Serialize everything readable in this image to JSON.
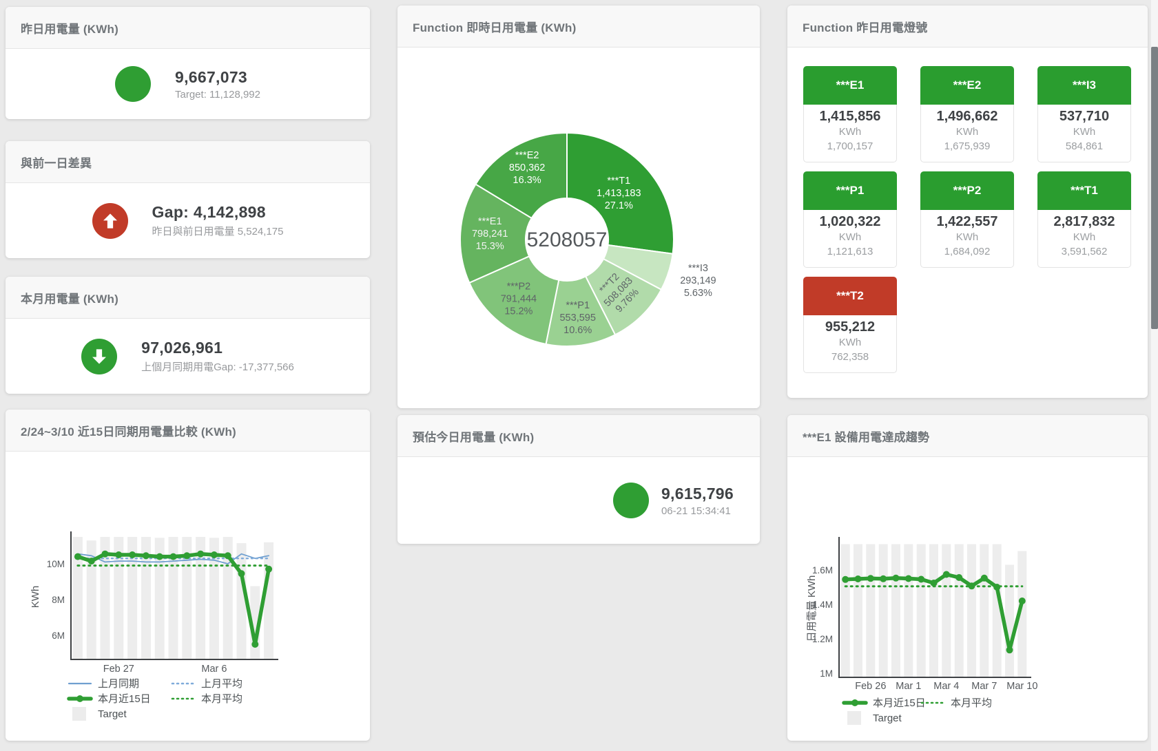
{
  "colors": {
    "green": "#2f9e33",
    "tile_green": "#2a9d2f",
    "red": "#c13b28",
    "bar_gray": "#ededed"
  },
  "cards": {
    "yesterday": {
      "title": "昨日用電量 (KWh)",
      "value": "9,667,073",
      "subtitle": "Target: 11,128,992"
    },
    "gap_prev_day": {
      "title": "與前一日差異",
      "value": "Gap: 4,142,898",
      "subtitle": "昨日與前日用電量 5,524,175"
    },
    "month": {
      "title": "本月用電量 (KWh)",
      "value": "97,026,961",
      "subtitle": "上個月同期用電Gap: -17,377,566"
    },
    "today_estimate": {
      "title": "預估今日用電量 (KWh)",
      "value": "9,615,796",
      "subtitle": "06-21 15:34:41"
    }
  },
  "donut_card": {
    "title": "Function 即時日用電量 (KWh)",
    "center_total": "5208057",
    "slices": [
      {
        "name": "***T1",
        "value": "1,413,183",
        "pct": "27.1%",
        "p": 27.1,
        "color": "#2f9e33",
        "text": "#ffffff",
        "lr": 100
      },
      {
        "name": "***I3",
        "value": "293,149",
        "pct": "5.63%",
        "p": 5.63,
        "color": "#c7e6c1",
        "text": "#5f6468",
        "outside": true
      },
      {
        "name": "***T2",
        "value": "508,083",
        "pct": "9.76%",
        "p": 9.76,
        "color": "#b1dbaa",
        "text": "#5f6468",
        "rotate": -46,
        "lr": 108
      },
      {
        "name": "***P1",
        "value": "553,595",
        "pct": "10.6%",
        "p": 10.6,
        "color": "#9ad192",
        "text": "#5f6468",
        "lr": 116
      },
      {
        "name": "***P2",
        "value": "791,444",
        "pct": "15.2%",
        "p": 15.2,
        "color": "#81c47a",
        "text": "#5f6468",
        "lr": 112
      },
      {
        "name": "***E1",
        "value": "798,241",
        "pct": "15.3%",
        "p": 15.3,
        "color": "#65b45f",
        "text": "#f2f2f2",
        "lr": 112
      },
      {
        "name": "***E2",
        "value": "850,362",
        "pct": "16.3%",
        "p": 16.3,
        "color": "#47a746",
        "text": "#ffffff",
        "lr": 118
      }
    ]
  },
  "lights_card": {
    "title": "Function 昨日用電燈號",
    "unit": "KWh",
    "tiles": [
      {
        "name": "***E1",
        "value": "1,415,856",
        "target": "1,700,157",
        "status": "green"
      },
      {
        "name": "***E2",
        "value": "1,496,662",
        "target": "1,675,939",
        "status": "green"
      },
      {
        "name": "***I3",
        "value": "537,710",
        "target": "584,861",
        "status": "green"
      },
      {
        "name": "***P1",
        "value": "1,020,322",
        "target": "1,121,613",
        "status": "green"
      },
      {
        "name": "***P2",
        "value": "1,422,557",
        "target": "1,684,092",
        "status": "green"
      },
      {
        "name": "***T1",
        "value": "2,817,832",
        "target": "3,591,562",
        "status": "green"
      },
      {
        "name": "***T2",
        "value": "955,212",
        "target": "762,358",
        "status": "red"
      }
    ]
  },
  "comparison_chart": {
    "type": "line",
    "title": "2/24~3/10 近15日同期用電量比較 (KWh)",
    "ylabel": "KWh",
    "unit": "M KWh",
    "ylim": [
      4.654,
      11.654
    ],
    "yticks": [
      {
        "v": 6,
        "t": "6M"
      },
      {
        "v": 8,
        "t": "8M"
      },
      {
        "v": 10,
        "t": "10M"
      }
    ],
    "xticks": [
      {
        "i": 3,
        "t": "Feb 27"
      },
      {
        "i": 10,
        "t": "Mar 6"
      }
    ],
    "bar_color": "#ededed",
    "target": [
      11.5,
      11.3,
      11.5,
      11.5,
      11.5,
      11.5,
      11.45,
      11.5,
      11.5,
      11.5,
      11.45,
      11.5,
      11.15,
      8.75,
      11.2
    ],
    "series": [
      {
        "name": "上月同期",
        "color": "#6f9fd0",
        "w": 1.8,
        "values": [
          10.55,
          10.45,
          10.1,
          10.15,
          10.15,
          10.1,
          10.1,
          10.15,
          10.2,
          10.25,
          10.2,
          10.0,
          10.55,
          10.3,
          10.45
        ]
      },
      {
        "name": "上月平均",
        "color": "#7fabda",
        "w": 2.4,
        "dash": "2,5",
        "values": [
          10.3,
          10.3,
          10.3,
          10.3,
          10.3,
          10.3,
          10.3,
          10.3,
          10.3,
          10.3,
          10.3,
          10.3,
          10.3,
          10.3,
          10.3
        ]
      },
      {
        "name": "本月近15日",
        "color": "#2f9e33",
        "w": 5.5,
        "dots": true,
        "values": [
          10.4,
          10.15,
          10.55,
          10.5,
          10.5,
          10.45,
          10.4,
          10.4,
          10.45,
          10.55,
          10.5,
          10.45,
          9.45,
          5.5,
          9.7
        ]
      },
      {
        "name": "本月平均",
        "color": "#2f9e33",
        "w": 3,
        "dash": "2,6",
        "values": [
          9.9,
          9.9,
          9.9,
          9.9,
          9.9,
          9.9,
          9.9,
          9.9,
          9.9,
          9.9,
          9.9,
          9.9,
          9.9,
          9.9,
          9.9
        ]
      }
    ],
    "legend_rows": [
      [
        {
          "m": "solid",
          "color": "#6f9fd0",
          "label": "上月同期"
        },
        {
          "m": "dash",
          "color": "#7fabda",
          "label": "上月平均"
        }
      ],
      [
        {
          "m": "thick",
          "color": "#2f9e33",
          "label": "本月近15日"
        },
        {
          "m": "dash",
          "color": "#2f9e33",
          "label": "本月平均"
        }
      ],
      [
        {
          "m": "square",
          "color": "#ececec",
          "label": "Target"
        }
      ]
    ]
  },
  "trend_chart": {
    "type": "line",
    "title": "***E1 設備用電達成趨勢",
    "ylabel": "日用電量 KWh",
    "ylim": [
      0.976,
      1.776
    ],
    "yticks": [
      {
        "v": 1.0,
        "t": "1M"
      },
      {
        "v": 1.2,
        "t": "1.2M"
      },
      {
        "v": 1.4,
        "t": "1.4M"
      },
      {
        "v": 1.6,
        "t": "1.6M"
      }
    ],
    "xticks": [
      {
        "i": 2,
        "t": "Feb 26"
      },
      {
        "i": 5,
        "t": "Mar 1"
      },
      {
        "i": 8,
        "t": "Mar 4"
      },
      {
        "i": 11,
        "t": "Mar 7"
      },
      {
        "i": 14,
        "t": "Mar 10"
      }
    ],
    "bar_color": "#ededed",
    "target": [
      1.75,
      1.75,
      1.75,
      1.75,
      1.75,
      1.75,
      1.75,
      1.75,
      1.75,
      1.75,
      1.75,
      1.75,
      1.75,
      1.63,
      1.71
    ],
    "series": [
      {
        "name": "本月近15日",
        "color": "#2f9e33",
        "w": 5.5,
        "dots": true,
        "values": [
          1.545,
          1.548,
          1.551,
          1.549,
          1.553,
          1.55,
          1.546,
          1.524,
          1.574,
          1.556,
          1.507,
          1.553,
          1.5,
          1.135,
          1.42
        ]
      },
      {
        "name": "本月平均",
        "color": "#2f9e33",
        "w": 3,
        "dash": "2,6",
        "values": [
          1.505,
          1.505,
          1.505,
          1.505,
          1.505,
          1.505,
          1.505,
          1.505,
          1.505,
          1.505,
          1.505,
          1.505,
          1.505,
          1.505,
          1.505
        ]
      }
    ],
    "legend_rows": [
      [
        {
          "m": "thick",
          "color": "#2f9e33",
          "label": "本月近15日"
        },
        {
          "m": "dash",
          "color": "#2f9e33",
          "label": "本月平均"
        }
      ],
      [
        {
          "m": "square",
          "color": "#ececec",
          "label": "Target"
        }
      ]
    ]
  }
}
